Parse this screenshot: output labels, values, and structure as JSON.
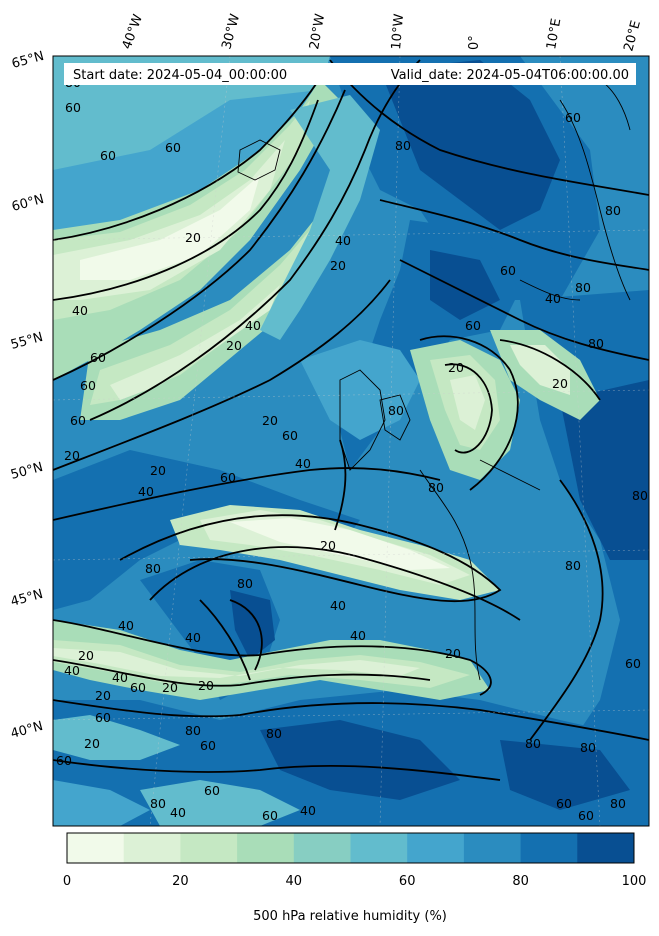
{
  "header": {
    "start_date": "Start date: 2024-05-04_00:00:00",
    "valid_date": "Valid_date: 2024-05-04T06:00:00.00"
  },
  "longitude_labels": [
    "40°W",
    "30°W",
    "20°W",
    "10°W",
    "0°",
    "10°E",
    "20°E"
  ],
  "latitude_labels": [
    "65°N",
    "60°N",
    "55°N",
    "50°N",
    "45°N",
    "40°N"
  ],
  "contour_labels": [
    "20",
    "40",
    "60",
    "80"
  ],
  "colorbar": {
    "label": "500 hPa relative humidity (%)",
    "ticks": [
      "0",
      "20",
      "40",
      "60",
      "80",
      "100"
    ],
    "levels": [
      0,
      10,
      20,
      30,
      40,
      50,
      60,
      70,
      80,
      90,
      100
    ],
    "colors": [
      "#f1faea",
      "#dcf1d6",
      "#c5e8c3",
      "#a9ddb8",
      "#87cec2",
      "#62bccd",
      "#44a5cd",
      "#2b8cbf",
      "#1470b0",
      "#084f92"
    ]
  }
}
